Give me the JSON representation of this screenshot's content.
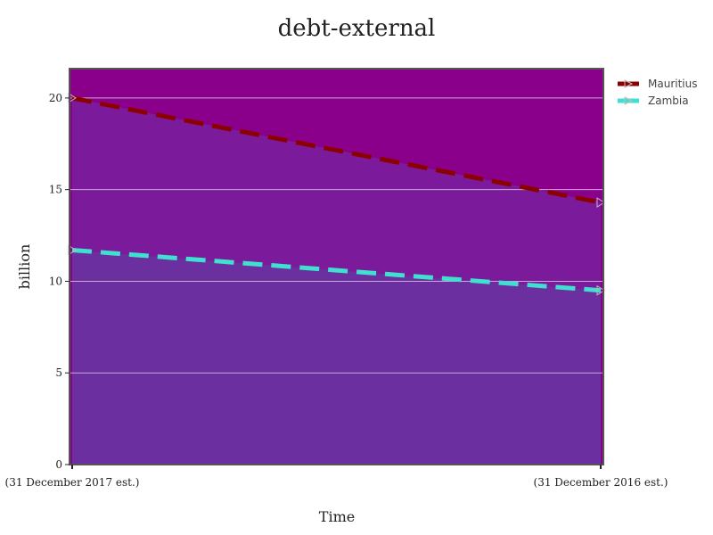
{
  "chart_data": {
    "type": "area",
    "title": "debt-external",
    "xlabel": "Time",
    "ylabel": "billion",
    "categories": [
      "(31 December 2017 est.)",
      "(31 December 2016 est.)"
    ],
    "ylim": [
      0,
      21.6
    ],
    "yticks": [
      0,
      5,
      10,
      15,
      20
    ],
    "grid": true,
    "legend_position": "top-right",
    "background_color": "#8b008b",
    "series": [
      {
        "name": "Mauritius",
        "values": [
          20.0,
          14.3
        ],
        "line_color": "#8b0000",
        "fill_color": "#7b1a9a"
      },
      {
        "name": "Zambia",
        "values": [
          11.7,
          9.5
        ],
        "line_color": "#40e0d0",
        "fill_color": "#6b2fa0"
      }
    ]
  }
}
